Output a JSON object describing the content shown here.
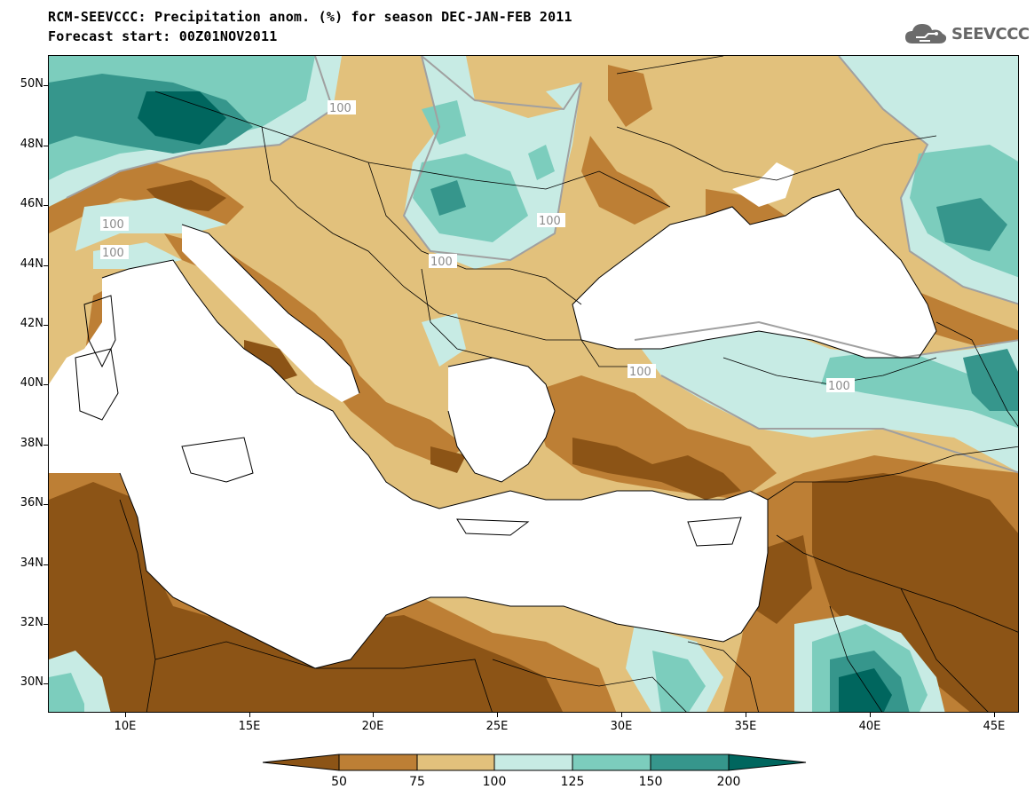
{
  "title": {
    "line1": "RCM-SEEVCCC: Precipitation anom. (%) for season DEC-JAN-FEB 2011",
    "line2": "Forecast start: 00Z01NOV2011"
  },
  "logo": {
    "text": "SEEVCCC",
    "icon": "cloud-logo-icon",
    "color": "#6b6b6b"
  },
  "axes": {
    "lat_ticks": [
      "50N",
      "48N",
      "46N",
      "44N",
      "42N",
      "40N",
      "38N",
      "36N",
      "34N",
      "32N",
      "30N"
    ],
    "lon_ticks": [
      "10E",
      "15E",
      "20E",
      "25E",
      "30E",
      "35E",
      "40E",
      "45E"
    ]
  },
  "contour_labels": [
    "100",
    "100",
    "100",
    "100",
    "100",
    "100",
    "100"
  ],
  "colorbar": {
    "levels": [
      "50",
      "75",
      "100",
      "125",
      "150",
      "200"
    ],
    "colors": [
      "#8c5416",
      "#bd7f35",
      "#e2c17c",
      "#c7ebe4",
      "#7ccdbd",
      "#36968c",
      "#00665e"
    ]
  },
  "colors": {
    "sea": "#ffffff",
    "borders": "#000000",
    "contour_line": "#a0a0a0"
  }
}
